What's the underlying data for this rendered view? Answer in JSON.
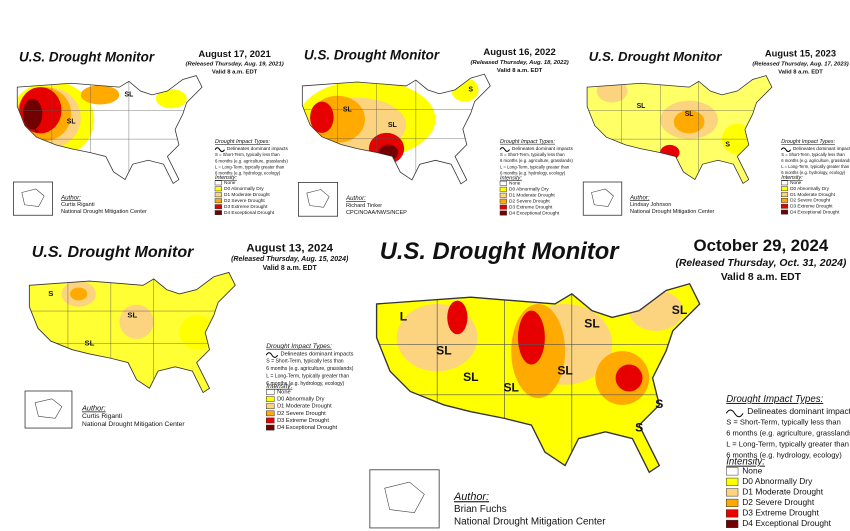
{
  "maps": [
    {
      "title": "U.S. Drought Monitor",
      "date": "August 17, 2021",
      "released": "(Released Thursday, Aug. 19, 2021)",
      "valid": "Valid 8 a.m. EDT",
      "impact_title": "Drought Impact Types:",
      "impacts": [
        "Delineates dominant impacts",
        "S = Short-Term, typically less than",
        "6 months (e.g. agriculture, grasslands)",
        "L = Long-Term, typically greater than",
        "6 months (e.g. hydrology, ecology)"
      ],
      "intensity_title": "Intensity:",
      "legend": [
        "None",
        "D0 Abnormally Dry",
        "D1 Moderate Drought",
        "D2 Severe Drought",
        "D3 Extreme Drought",
        "D4 Exceptional Drought"
      ],
      "author_label": "Author:",
      "author": [
        "Curtis Riganti",
        "National Drought Mitigation Center"
      ],
      "map_labels": [
        "SL",
        "SL",
        "L"
      ]
    },
    {
      "title": "U.S. Drought Monitor",
      "date": "August 16, 2022",
      "released": "(Released Thursday, Aug. 18, 2022)",
      "valid": "Valid 8 a.m. EDT",
      "impact_title": "Drought Impact Types:",
      "impacts": [
        "Delineates dominant impacts",
        "S = Short-Term, typically less than",
        "6 months (e.g. agriculture, grasslands)",
        "L = Long-Term, typically greater than",
        "6 months (e.g. hydrology, ecology)"
      ],
      "intensity_title": "Intensity:",
      "legend": [
        "None",
        "D0 Abnormally Dry",
        "D1 Moderate Drought",
        "D2 Severe Drought",
        "D3 Extreme Drought",
        "D4 Exceptional Drought"
      ],
      "author_label": "Author:",
      "author": [
        "Richard Tinker",
        "CPC/NOAA/NWS/NCEP"
      ],
      "map_labels": [
        "SL",
        "SL",
        "S"
      ]
    },
    {
      "title": "U.S. Drought Monitor",
      "date": "August 15, 2023",
      "released": "(Released Thursday, Aug. 17, 2023)",
      "valid": "Valid 8 a.m. EDT",
      "impact_title": "Drought Impact Types:",
      "impacts": [
        "Delineates dominant impacts",
        "S = Short-Term, typically less than",
        "6 months (e.g. agriculture, grasslands)",
        "L = Long-Term, typically greater than",
        "6 months (e.g. hydrology, ecology)"
      ],
      "intensity_title": "Intensity:",
      "legend": [
        "None",
        "D0 Abnormally Dry",
        "D1 Moderate Drought",
        "D2 Severe Drought",
        "D3 Extreme Drought",
        "D4 Exceptional Drought"
      ],
      "author_label": "Author:",
      "author": [
        "Lindsay Johnson",
        "National Drought Mitigation Center"
      ],
      "map_labels": [
        "SL",
        "SL",
        "S"
      ]
    },
    {
      "title": "U.S. Drought Monitor",
      "date": "August 13, 2024",
      "released": "(Released Thursday, Aug. 15, 2024)",
      "valid": "Valid 8 a.m. EDT",
      "impact_title": "Drought Impact Types:",
      "impacts": [
        "Delineates dominant impacts",
        "S = Short-Term, typically less than",
        "6 months (e.g. agriculture, grasslands)",
        "L = Long-Term, typically greater than",
        "6 months (e.g. hydrology, ecology)"
      ],
      "intensity_title": "Intensity:",
      "legend": [
        "None",
        "D0 Abnormally Dry",
        "D1 Moderate Drought",
        "D2 Severe Drought",
        "D3 Extreme Drought",
        "D4 Exceptional Drought"
      ],
      "author_label": "Author:",
      "author": [
        "Curtis Riganti",
        "National Drought Mitigation Center"
      ],
      "map_labels": [
        "S",
        "SL",
        "SL"
      ]
    },
    {
      "title": "U.S. Drought Monitor",
      "date": "October 29, 2024",
      "released": "(Released Thursday, Oct. 31, 2024)",
      "valid": "Valid 8 a.m. EDT",
      "impact_title": "Drought Impact Types:",
      "impacts": [
        "Delineates dominant impacts",
        "S = Short-Term, typically less than",
        "6 months (e.g. agriculture, grasslands)",
        "L = Long-Term, typically greater than",
        "6 months (e.g. hydrology, ecology)"
      ],
      "intensity_title": "Intensity:",
      "legend": [
        "None",
        "D0 Abnormally Dry",
        "D1 Moderate Drought",
        "D2 Severe Drought",
        "D3 Extreme Drought",
        "D4 Exceptional Drought"
      ],
      "author_label": "Author:",
      "author": [
        "Brian Fuchs",
        "National Drought Mitigation Center"
      ],
      "map_labels": [
        "L",
        "SL",
        "SL",
        "SL",
        "SL",
        "SL",
        "S",
        "S",
        "SL"
      ]
    }
  ]
}
